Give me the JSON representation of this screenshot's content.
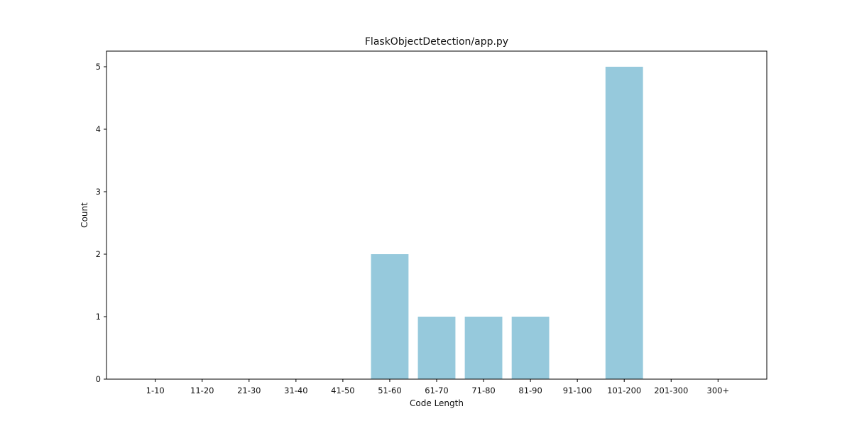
{
  "chart_data": {
    "type": "bar",
    "title": "FlaskObjectDetection/app.py",
    "xlabel": "Code Length",
    "ylabel": "Count",
    "categories": [
      "1-10",
      "11-20",
      "21-30",
      "31-40",
      "41-50",
      "51-60",
      "61-70",
      "71-80",
      "81-90",
      "91-100",
      "101-200",
      "201-300",
      "300+"
    ],
    "values": [
      0,
      0,
      0,
      0,
      0,
      2,
      1,
      1,
      1,
      0,
      5,
      0,
      0
    ],
    "yticks": [
      0,
      1,
      2,
      3,
      4,
      5
    ],
    "ylim": [
      0,
      5.25
    ],
    "grid": false,
    "bar_color": "#96c9dc"
  }
}
